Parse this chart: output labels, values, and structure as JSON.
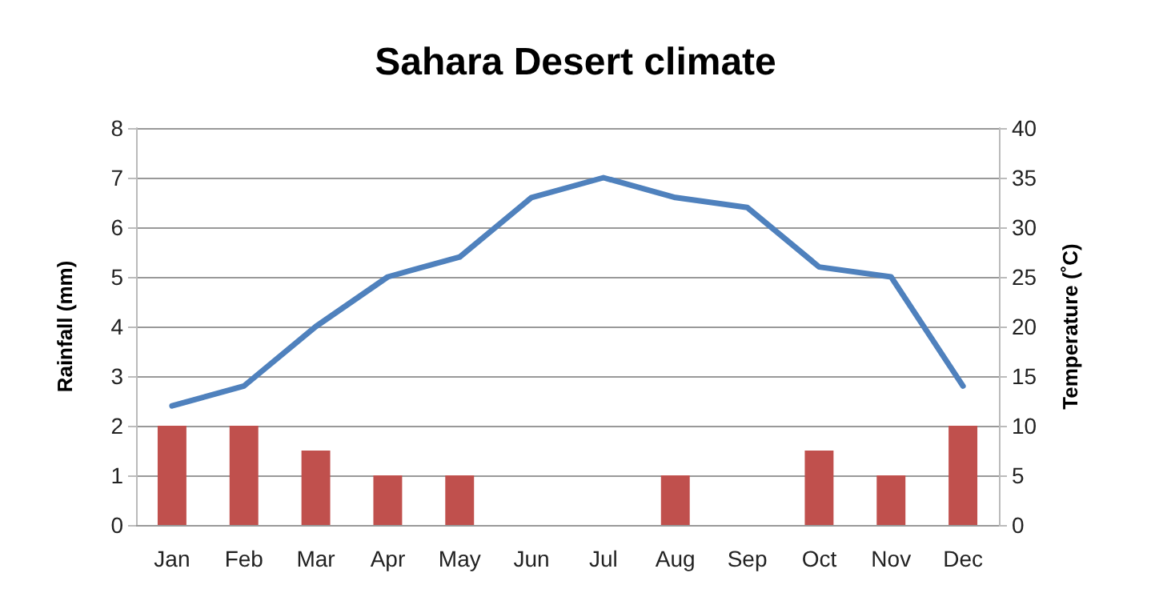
{
  "chart_data": {
    "type": "bar",
    "title": "Sahara Desert climate",
    "ylabel": "Rainfall (mm)",
    "y2label": "Temperature (˚C)",
    "categories": [
      "Jan",
      "Feb",
      "Mar",
      "Apr",
      "May",
      "Jun",
      "Jul",
      "Aug",
      "Sep",
      "Oct",
      "Nov",
      "Dec"
    ],
    "series": [
      {
        "color": "#c0504d",
        "values": [
          2,
          2,
          1.5,
          1,
          1,
          0,
          0,
          1,
          0,
          1.5,
          1,
          2
        ]
      },
      {
        "type": "line",
        "axis": "y2",
        "color": "#4f81bd",
        "values": [
          12,
          14,
          20,
          25,
          27,
          33,
          35,
          33,
          32,
          26,
          25,
          14
        ]
      }
    ],
    "ylim": [
      0,
      8
    ],
    "yticks": [
      0,
      1,
      2,
      3,
      4,
      5,
      6,
      7,
      8
    ],
    "y2lim": [
      0,
      40
    ],
    "y2ticks": [
      0,
      5,
      10,
      15,
      20,
      25,
      30,
      35,
      40
    ],
    "grid": "y",
    "marker": "none",
    "line_style": "solid"
  }
}
